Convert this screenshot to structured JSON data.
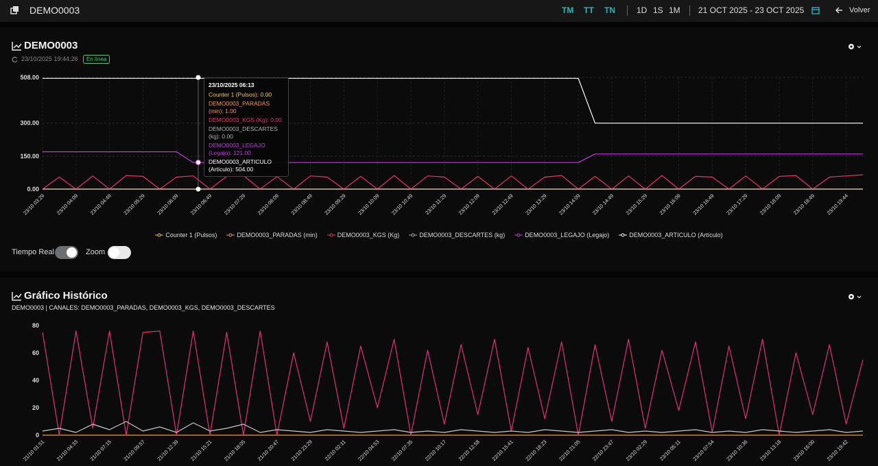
{
  "header": {
    "title": "DEMO0003",
    "shifts": [
      "TM",
      "TT",
      "TN"
    ],
    "ranges": [
      "1D",
      "1S",
      "1M"
    ],
    "date_range": "21 OCT 2025 - 23 OCT 2025",
    "back": "Volver"
  },
  "realtime": {
    "title": "DEMO0003",
    "timestamp": "23/10/2025 19:44:26",
    "status": "En línea",
    "toggles": [
      {
        "label": "Tiempo Real",
        "on": true
      },
      {
        "label": "Zoom",
        "on": false
      }
    ],
    "tooltip": {
      "title": "23/10/2025 06:13",
      "lines": [
        {
          "text": "Counter 1 (Pulsos): 0.00",
          "color": "#f2c94c"
        },
        {
          "text": "DEMO0003_PARADAS (min): 1.00",
          "color": "#f2994a"
        },
        {
          "text": "DEMO0003_KGS (Kg): 0.00",
          "color": "#e8336d"
        },
        {
          "text": "DEMO0003_DESCARTES (kg): 0.00",
          "color": "#b0b0b0"
        },
        {
          "text": "DEMO0003_LEGAJO (Legajo): 121.00",
          "color": "#c13ae0"
        },
        {
          "text": "DEMO0003_ARTICULO (Artículo): 504.00",
          "color": "#ffffff"
        }
      ]
    }
  },
  "historic": {
    "title": "Gráfico Histórico",
    "subtitle": "DEMO0003 | CANALES: DEMO0003_PARADAS, DEMO0003_KGS, DEMO0003_DESCARTES"
  },
  "chart_data": [
    {
      "type": "line",
      "grid": true,
      "legend": "bottom",
      "ylim": [
        0,
        508
      ],
      "yticks": [
        {
          "value": 0,
          "label": "0.00"
        },
        {
          "value": 150,
          "label": "150.00"
        },
        {
          "value": 300,
          "label": "300.00"
        },
        {
          "value": 508,
          "label": "508.00"
        }
      ],
      "categories": [
        "23/10 03:29",
        null,
        "23/10 04:09",
        null,
        "23/10 04:49",
        null,
        "23/10 05:29",
        null,
        "23/10 06:09",
        null,
        "23/10 06:49",
        null,
        "23/10 07:29",
        null,
        "23/10 08:09",
        null,
        "23/10 08:49",
        null,
        "23/10 09:29",
        null,
        "23/10 10:09",
        null,
        "23/10 10:49",
        null,
        "23/10 11:29",
        null,
        "23/10 12:09",
        null,
        "23/10 12:49",
        null,
        "23/10 13:29",
        null,
        "23/10 14:09",
        null,
        "23/10 14:49",
        null,
        "23/10 15:29",
        null,
        "23/10 16:09",
        null,
        "23/10 16:49",
        null,
        "23/10 17:29",
        null,
        "23/10 18:09",
        null,
        "23/10 18:49",
        null,
        "23/10 19:44",
        null
      ],
      "series": [
        {
          "name": "Counter 1 (Pulsos)",
          "color": "#f2c94c",
          "values": [
            0,
            0,
            0,
            0,
            0,
            0,
            0,
            0,
            0,
            0,
            0,
            0,
            0,
            0,
            0,
            0,
            0,
            0,
            0,
            0,
            0,
            0,
            0,
            0,
            0,
            0,
            0,
            0,
            0,
            0,
            0,
            0,
            0,
            0,
            0,
            0,
            0,
            0,
            0,
            0,
            0,
            0,
            0,
            0,
            0,
            0,
            0,
            0,
            0,
            0
          ]
        },
        {
          "name": "DEMO0003_PARADAS (min)",
          "color": "#f2994a",
          "values": [
            1,
            1,
            1,
            1,
            1,
            1,
            1,
            1,
            1,
            1,
            1,
            1,
            1,
            1,
            1,
            1,
            1,
            1,
            1,
            1,
            1,
            1,
            1,
            1,
            1,
            1,
            1,
            1,
            1,
            1,
            1,
            1,
            1,
            1,
            1,
            1,
            1,
            1,
            1,
            1,
            1,
            1,
            1,
            1,
            1,
            1,
            1,
            1,
            1,
            1
          ]
        },
        {
          "name": "DEMO0003_KGS (Kg)",
          "color": "#e8336d",
          "values": [
            0,
            55,
            0,
            60,
            0,
            62,
            58,
            0,
            55,
            60,
            0,
            58,
            62,
            0,
            57,
            0,
            60,
            55,
            0,
            58,
            0,
            62,
            0,
            60,
            55,
            0,
            58,
            0,
            60,
            0,
            55,
            62,
            0,
            58,
            0,
            60,
            0,
            62,
            0,
            58,
            55,
            0,
            60,
            0,
            58,
            62,
            0,
            55,
            60,
            65
          ]
        },
        {
          "name": "DEMO0003_DESCARTES (kg)",
          "color": "#b0b0b0",
          "values": [
            0,
            0,
            0,
            0,
            0,
            0,
            0,
            0,
            0,
            0,
            0,
            0,
            0,
            0,
            0,
            0,
            0,
            0,
            0,
            0,
            0,
            0,
            0,
            0,
            0,
            0,
            0,
            0,
            0,
            0,
            0,
            0,
            0,
            0,
            0,
            0,
            0,
            0,
            0,
            0,
            0,
            0,
            0,
            0,
            0,
            0,
            0,
            0,
            0,
            0
          ]
        },
        {
          "name": "DEMO0003_LEGAJO (Legajo)",
          "color": "#c13ae0",
          "values": [
            170,
            170,
            170,
            170,
            170,
            170,
            170,
            170,
            170,
            121,
            121,
            121,
            121,
            121,
            121,
            121,
            121,
            121,
            121,
            121,
            121,
            121,
            121,
            121,
            121,
            121,
            121,
            121,
            121,
            121,
            121,
            121,
            121,
            160,
            160,
            160,
            160,
            160,
            160,
            160,
            160,
            160,
            160,
            160,
            160,
            160,
            160,
            160,
            160,
            160
          ]
        },
        {
          "name": "DEMO0003_ARTICULO (Artículo)",
          "color": "#ffffff",
          "values": [
            504,
            504,
            504,
            504,
            504,
            504,
            504,
            504,
            504,
            504,
            504,
            504,
            504,
            504,
            504,
            504,
            504,
            504,
            504,
            504,
            504,
            504,
            504,
            504,
            504,
            504,
            504,
            504,
            504,
            504,
            504,
            504,
            504,
            300,
            300,
            300,
            300,
            300,
            300,
            300,
            300,
            300,
            300,
            300,
            300,
            300,
            300,
            300,
            300,
            300
          ]
        }
      ]
    },
    {
      "type": "line",
      "grid": false,
      "ylim": [
        0,
        80
      ],
      "yticks": [
        0,
        20,
        40,
        60,
        80
      ],
      "categories": [
        "21/10 01:51",
        null,
        "21/10 04:33",
        null,
        "21/10 07:15",
        null,
        "21/10 09:57",
        null,
        "21/10 12:39",
        null,
        "21/10 15:21",
        null,
        "21/10 18:05",
        null,
        "21/10 20:47",
        null,
        "21/10 23:29",
        null,
        "22/10 02:11",
        null,
        "22/10 04:53",
        null,
        "22/10 07:35",
        null,
        "22/10 10:17",
        null,
        "22/10 12:58",
        null,
        "22/10 15:41",
        null,
        "22/10 18:23",
        null,
        "22/10 21:05",
        null,
        "22/10 23:47",
        null,
        "23/10 02:29",
        null,
        "23/10 05:11",
        null,
        "23/10 07:54",
        null,
        "23/10 10:36",
        null,
        "23/10 13:18",
        null,
        "23/10 16:00",
        null,
        "23/10 19:42",
        null
      ],
      "series": [
        {
          "color": "#f2994a",
          "values": [
            0,
            0,
            0,
            0,
            0,
            0,
            0,
            0,
            0,
            0,
            0,
            0,
            0,
            0,
            0,
            0,
            0,
            0,
            0,
            0,
            0,
            0,
            0,
            0,
            0,
            0,
            0,
            0,
            0,
            0,
            0,
            0,
            0,
            0,
            0,
            0,
            0,
            0,
            0,
            0,
            0,
            0,
            0,
            0,
            0,
            0,
            0,
            0,
            0,
            0
          ]
        },
        {
          "color": "#e0307a",
          "values": [
            75,
            0,
            76,
            5,
            76,
            0,
            75,
            76,
            0,
            76,
            0,
            75,
            0,
            76,
            0,
            60,
            10,
            68,
            5,
            65,
            20,
            70,
            0,
            62,
            8,
            66,
            15,
            70,
            3,
            64,
            12,
            68,
            0,
            66,
            10,
            70,
            5,
            62,
            18,
            68,
            2,
            65,
            12,
            70,
            0,
            60,
            15,
            66,
            8,
            55
          ]
        },
        {
          "color": "#c8c8c8",
          "values": [
            3,
            5,
            2,
            8,
            4,
            10,
            3,
            6,
            2,
            9,
            3,
            5,
            8,
            2,
            4,
            3,
            2,
            4,
            3,
            2,
            3,
            4,
            2,
            3,
            2,
            4,
            3,
            2,
            3,
            2,
            4,
            3,
            2,
            3,
            4,
            2,
            3,
            2,
            3,
            4,
            2,
            3,
            2,
            4,
            3,
            2,
            3,
            4,
            2,
            3
          ]
        }
      ]
    }
  ]
}
